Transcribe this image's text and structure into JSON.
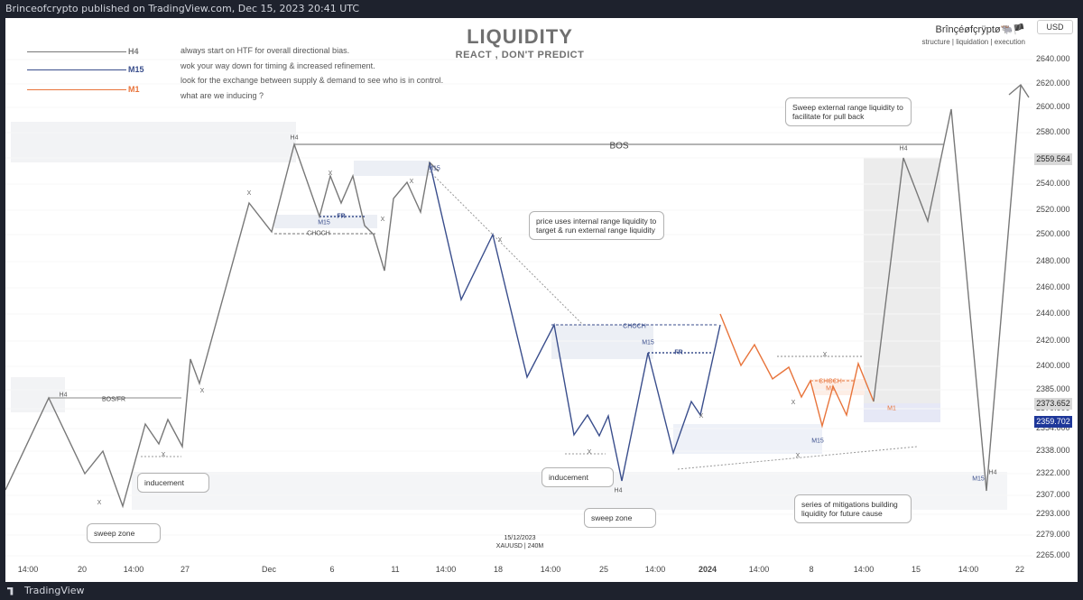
{
  "header": {
    "publish_line": "Brinceofcrypto published on TradingView.com, Dec 15, 2023 20:41 UTC"
  },
  "footer": {
    "brand": "TradingView"
  },
  "chart_title": "LIQUIDITY",
  "chart_subtitle": "REACT , DON'T PREDICT",
  "author": {
    "name": "Brînçéøfçrÿptø🐃🏴",
    "tags": "structure | liquidation | execution"
  },
  "currency_button": "USD",
  "legend": [
    {
      "label": "H4",
      "color": "#787878"
    },
    {
      "label": "M15",
      "color": "#3a4e8c"
    },
    {
      "label": "M1",
      "color": "#e8743b"
    }
  ],
  "notes": [
    "always start on HTF for overall directional bias.",
    "wok your way down for timing & increased refinement.",
    "look for the exchange between supply & demand to see who is in control.",
    "what are we inducing ?"
  ],
  "callouts": {
    "sweep_external": "Sweep external range liquidity to facilitate for pull back",
    "internal_range": "price uses internal range liquidity to target  &  run external range liquidity",
    "inducement_left": "inducement",
    "sweep_zone_left": "sweep zone",
    "inducement_mid": "inducement",
    "sweep_zone_mid": "sweep zone",
    "mitigations": "series of mitigations building liquidity for future cause"
  },
  "chart_labels": {
    "bos": "BOS",
    "bos_fr": "BOS/FR",
    "choch": "CHOCH",
    "fr": "FR",
    "h4": "H4",
    "m15": "M15",
    "m1": "M1",
    "x": "X"
  },
  "date_label": {
    "date": "15/12/2023",
    "symbol": "XAUUSD | 240M"
  },
  "price_tags": {
    "upper": "2559.564",
    "mid": "2373.652",
    "current": "2359.702"
  },
  "colors": {
    "h4": "#787878",
    "m15": "#3a4e8c",
    "m1": "#e8743b",
    "current_tag": "#1e3799",
    "tag_gray": "#d8d8d8"
  },
  "chart_data": {
    "type": "line",
    "symbol": "XAUUSD",
    "timeframe": "240M",
    "y_ticks": [
      2640.0,
      2620.0,
      2600.0,
      2580.0,
      2560.0,
      2540.0,
      2520.0,
      2500.0,
      2480.0,
      2460.0,
      2440.0,
      2420.0,
      2400.0,
      2385.0,
      2370.0,
      2354.0,
      2338.0,
      2322.0,
      2307.0,
      2293.0,
      2279.0,
      2265.0
    ],
    "x_ticks": [
      "14:00",
      "20",
      "14:00",
      "27",
      "Dec",
      "6",
      "11",
      "14:00",
      "18",
      "14:00",
      "25",
      "14:00",
      "2024",
      "14:00",
      "8",
      "14:00",
      "15",
      "14:00",
      "22"
    ],
    "series": [
      {
        "name": "H4",
        "values": [
          2305,
          2370,
          2300,
          2525,
          2502,
          2565,
          2540,
          2300,
          2328,
          2338,
          2318,
          2320,
          2395,
          2560,
          2510,
          2600,
          2318,
          2620
        ]
      },
      {
        "name": "M15",
        "values": [
          2565,
          2517,
          2545,
          2526,
          2550,
          2508,
          2527,
          2500,
          2472,
          2505,
          2490,
          2522,
          2510,
          2550,
          2450,
          2500,
          2390,
          2430,
          2338,
          2360,
          2340,
          2360,
          2315,
          2410,
          2340,
          2380,
          2370,
          2440
        ]
      },
      {
        "name": "M1",
        "values": [
          2440,
          2400,
          2405,
          2388,
          2391,
          2380,
          2382,
          2375,
          2390,
          2362,
          2390,
          2370,
          2400,
          2373
        ]
      }
    ]
  }
}
